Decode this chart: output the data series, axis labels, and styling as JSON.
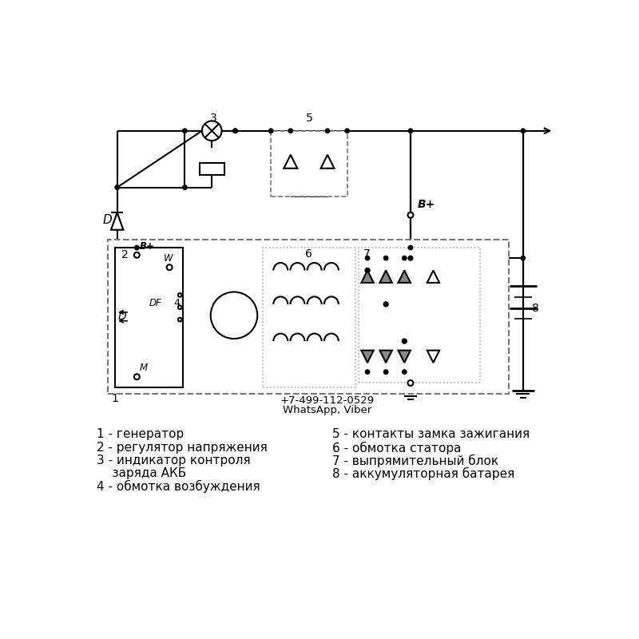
{
  "bg_color": "#ffffff",
  "line_color": "#000000",
  "contact_phone": "+7-499-112-0529",
  "contact_messenger": "WhatsApp, Viber",
  "left_legend": [
    "1 - генератор",
    "2 - регулятор напряжения",
    "3 - индикатор контроля",
    "    заряда АКБ",
    "4 - обмотка возбуждения"
  ],
  "right_legend": [
    "5 - контакты замка зажигания",
    "6 - обмотка статора",
    "7 - выпрямительный блок",
    "8 - аккумуляторная батарея"
  ]
}
